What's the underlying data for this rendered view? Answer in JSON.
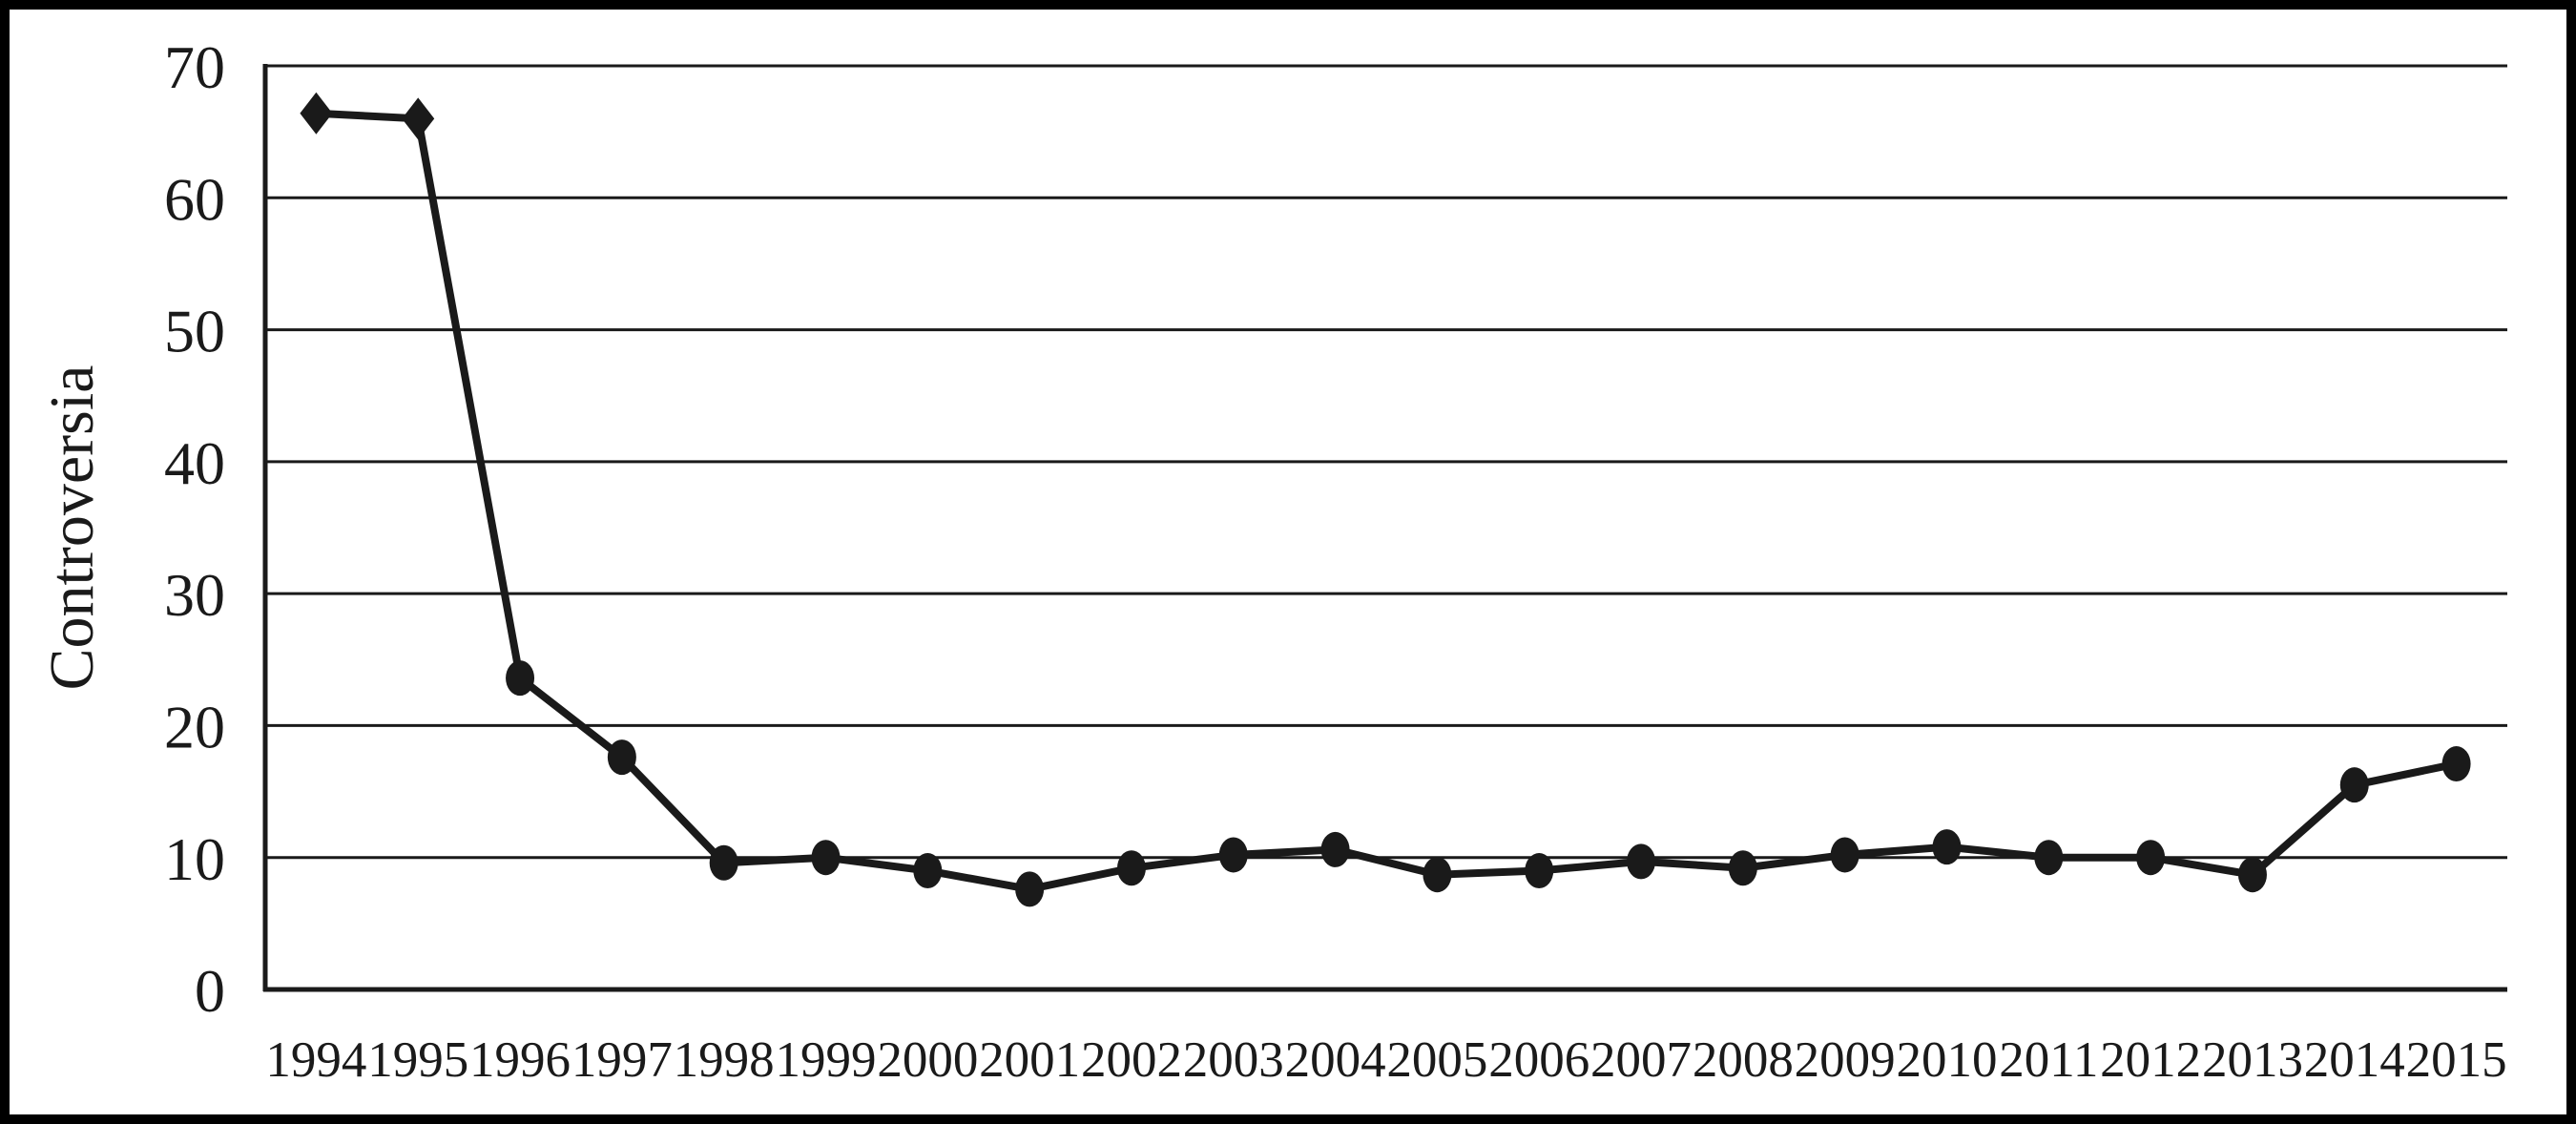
{
  "chart_data": {
    "type": "line",
    "title": "",
    "xlabel": "",
    "ylabel": "Controversia",
    "ylim": [
      0,
      70
    ],
    "yticks": [
      "0",
      "10",
      "20",
      "30",
      "40",
      "50",
      "60",
      "70"
    ],
    "grid": "horizontal",
    "legend": "none",
    "categories": [
      "1994",
      "1995",
      "1996",
      "1997",
      "1998",
      "1999",
      "2000",
      "2001",
      "2002",
      "2003",
      "2004",
      "2005",
      "2006",
      "2007",
      "2008",
      "2009",
      "2010",
      "2011",
      "2012",
      "2013",
      "2014",
      "2015"
    ],
    "series": [
      {
        "name": "Controversia",
        "values": [
          66.4,
          66.0,
          23.6,
          17.6,
          9.6,
          10.0,
          9.0,
          7.6,
          9.2,
          10.2,
          10.6,
          8.7,
          9.0,
          9.7,
          9.2,
          10.2,
          10.8,
          10.0,
          10.0,
          8.7,
          15.5,
          17.1
        ],
        "markers": [
          "diamond",
          "diamond",
          "circle",
          "circle",
          "circle",
          "circle",
          "circle",
          "circle",
          "circle",
          "circle",
          "circle",
          "circle",
          "circle",
          "circle",
          "circle",
          "circle",
          "circle",
          "circle",
          "circle",
          "circle",
          "circle",
          "circle"
        ]
      }
    ]
  },
  "colors": {
    "ink": "#1a1a1a",
    "background": "#ffffff",
    "outer_border": "#000000"
  }
}
